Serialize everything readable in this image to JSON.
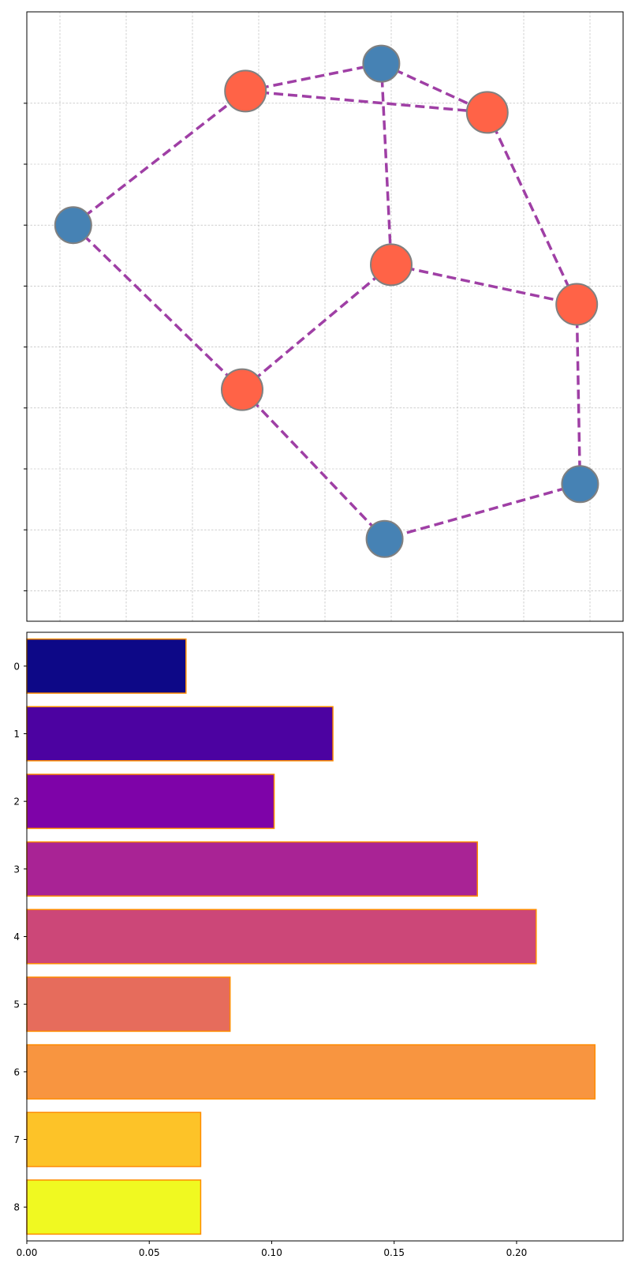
{
  "colors": {
    "node_blue": "#4682b4",
    "node_orange": "#ff6347",
    "node_border": "#808080",
    "edge": "#9f3fa5",
    "grid": "#b0b0b0",
    "bar_border": "#ff8c00"
  },
  "chart_data": [
    {
      "type": "network",
      "grid": true,
      "edge_style": "dashed",
      "nodes": [
        {
          "id": 0,
          "x": 0.02,
          "y": 0.6,
          "group": "blue"
        },
        {
          "id": 1,
          "x": 0.28,
          "y": 0.82,
          "group": "orange"
        },
        {
          "id": 2,
          "x": 0.485,
          "y": 0.865,
          "group": "blue"
        },
        {
          "id": 3,
          "x": 0.645,
          "y": 0.785,
          "group": "orange"
        },
        {
          "id": 4,
          "x": 0.5,
          "y": 0.535,
          "group": "orange"
        },
        {
          "id": 5,
          "x": 0.78,
          "y": 0.47,
          "group": "orange"
        },
        {
          "id": 6,
          "x": 0.275,
          "y": 0.33,
          "group": "orange"
        },
        {
          "id": 7,
          "x": 0.785,
          "y": 0.175,
          "group": "blue"
        },
        {
          "id": 8,
          "x": 0.49,
          "y": 0.085,
          "group": "blue"
        }
      ],
      "edges": [
        [
          0,
          1
        ],
        [
          1,
          2
        ],
        [
          1,
          3
        ],
        [
          2,
          3
        ],
        [
          2,
          4
        ],
        [
          3,
          5
        ],
        [
          4,
          5
        ],
        [
          4,
          6
        ],
        [
          0,
          6
        ],
        [
          5,
          7
        ],
        [
          6,
          8
        ],
        [
          7,
          8
        ]
      ],
      "xlim": [
        -0.05,
        0.85
      ],
      "ylim": [
        -0.05,
        0.95
      ]
    },
    {
      "type": "bar",
      "orientation": "horizontal",
      "categories": [
        "0",
        "1",
        "2",
        "3",
        "4",
        "5",
        "6",
        "7",
        "8"
      ],
      "values": [
        0.065,
        0.125,
        0.101,
        0.184,
        0.208,
        0.083,
        0.232,
        0.071,
        0.071
      ],
      "bar_colors": [
        "#0d0887",
        "#4c02a1",
        "#7e03a8",
        "#a92395",
        "#cc4778",
        "#e66c5c",
        "#f89540",
        "#fdc328",
        "#f0f921"
      ],
      "xlim": [
        0,
        0.2435
      ],
      "xticks": [
        "0.00",
        "0.05",
        "0.10",
        "0.15",
        "0.20"
      ],
      "grid": false
    }
  ]
}
